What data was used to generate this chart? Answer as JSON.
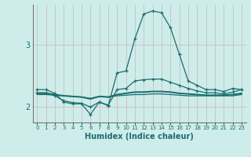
{
  "xlabel": "Humidex (Indice chaleur)",
  "background_color": "#ceecea",
  "grid_color": "#b8dbd9",
  "line_color": "#1a6e6e",
  "xlim": [
    -0.5,
    23.5
  ],
  "ylim": [
    1.75,
    3.65
  ],
  "x": [
    0,
    1,
    2,
    3,
    4,
    5,
    6,
    7,
    8,
    9,
    10,
    11,
    12,
    13,
    14,
    15,
    16,
    17,
    18,
    19,
    20,
    21,
    22,
    23
  ],
  "line1": [
    2.28,
    2.28,
    2.22,
    2.08,
    2.05,
    2.05,
    1.88,
    2.08,
    2.02,
    2.55,
    2.58,
    3.1,
    3.5,
    3.55,
    3.52,
    3.28,
    2.85,
    2.42,
    2.35,
    2.28,
    2.28,
    2.25,
    2.3,
    2.28
  ],
  "line2": [
    2.23,
    2.23,
    2.18,
    2.1,
    2.07,
    2.06,
    2.0,
    2.08,
    2.03,
    2.28,
    2.3,
    2.42,
    2.44,
    2.45,
    2.45,
    2.4,
    2.35,
    2.3,
    2.26,
    2.23,
    2.23,
    2.21,
    2.24,
    2.28
  ],
  "line3": [
    2.22,
    2.22,
    2.2,
    2.18,
    2.17,
    2.16,
    2.13,
    2.17,
    2.16,
    2.2,
    2.22,
    2.24,
    2.24,
    2.25,
    2.25,
    2.24,
    2.22,
    2.21,
    2.2,
    2.19,
    2.19,
    2.19,
    2.2,
    2.22
  ],
  "line4": [
    2.2,
    2.2,
    2.19,
    2.18,
    2.17,
    2.16,
    2.14,
    2.17,
    2.16,
    2.18,
    2.19,
    2.2,
    2.2,
    2.21,
    2.21,
    2.2,
    2.19,
    2.18,
    2.18,
    2.18,
    2.18,
    2.18,
    2.18,
    2.2
  ],
  "yticks": [
    2,
    3
  ],
  "xtick_labels": [
    "0",
    "1",
    "2",
    "3",
    "4",
    "5",
    "6",
    "7",
    "8",
    "9",
    "10",
    "11",
    "12",
    "13",
    "14",
    "15",
    "16",
    "17",
    "18",
    "19",
    "20",
    "21",
    "22",
    "23"
  ]
}
